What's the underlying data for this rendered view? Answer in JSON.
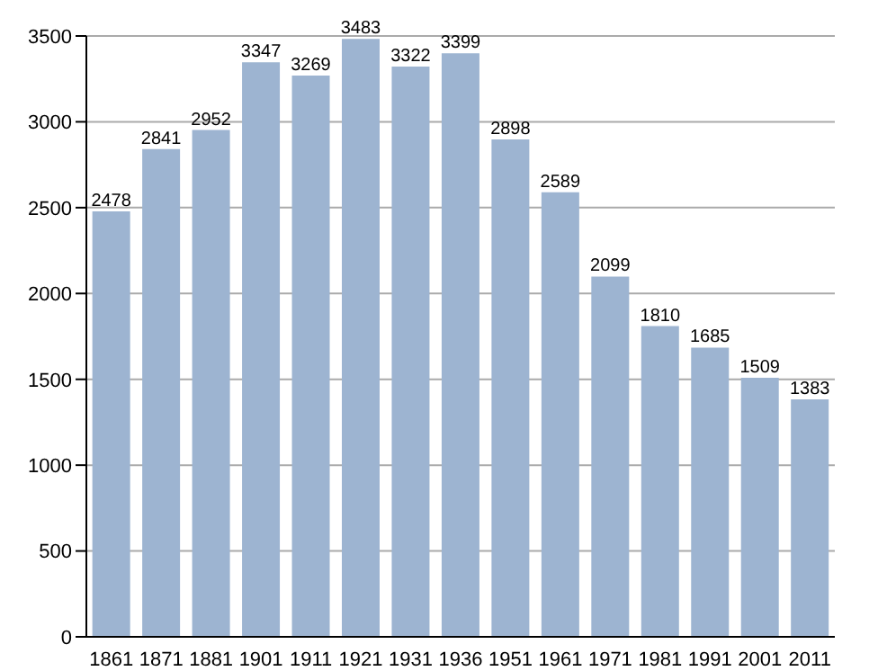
{
  "chart_data": {
    "type": "bar",
    "categories": [
      "1861",
      "1871",
      "1881",
      "1901",
      "1911",
      "1921",
      "1931",
      "1936",
      "1951",
      "1961",
      "1971",
      "1981",
      "1991",
      "2001",
      "2011"
    ],
    "values": [
      2478,
      2841,
      2952,
      3347,
      3269,
      3483,
      3322,
      3399,
      2898,
      2589,
      2099,
      1810,
      1685,
      1509,
      1383
    ],
    "color": "#9db4d1",
    "ylim": [
      0,
      3500
    ],
    "yticks": [
      0,
      500,
      1000,
      1500,
      2000,
      2500,
      3000,
      3500
    ],
    "grid": "y",
    "data_labels": true
  }
}
